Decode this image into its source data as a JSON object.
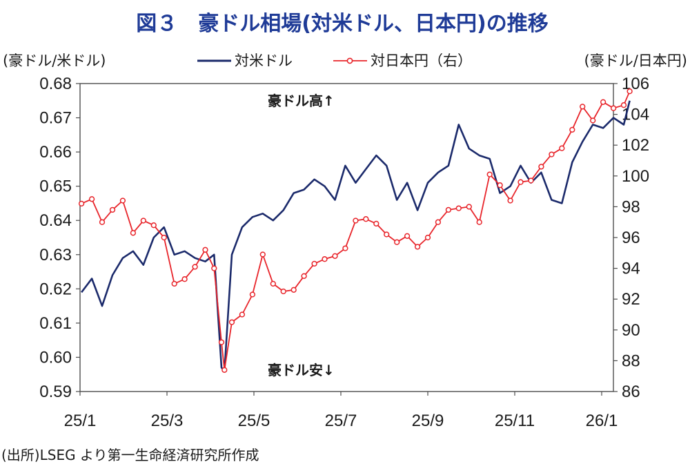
{
  "chart_data": {
    "type": "line",
    "title": "図３　豪ドル相場(対米ドル、日本円)の推移",
    "ylabel_left": "(豪ドル/米ドル)",
    "ylabel_right": "(豪ドル/日本円)",
    "ylim_left": [
      0.59,
      0.68
    ],
    "ylim_right": [
      86,
      106
    ],
    "yticks_left": [
      "0.68",
      "0.67",
      "0.66",
      "0.65",
      "0.64",
      "0.63",
      "0.62",
      "0.61",
      "0.60",
      "0.59"
    ],
    "yticks_right": [
      "106",
      "104",
      "102",
      "100",
      "98",
      "96",
      "94",
      "92",
      "90",
      "88",
      "86"
    ],
    "xticks": [
      "25/1",
      "25/3",
      "25/5",
      "25/7",
      "25/9",
      "25/11",
      "26/1"
    ],
    "grid": false,
    "legend_position": "top",
    "annotations": {
      "up": "豪ドル高↑",
      "down": "豪ドル安↓"
    },
    "source": "(出所)LSEG より第一生命経済研究所作成",
    "series": [
      {
        "name": "対米ドル",
        "axis": "left",
        "color": "#1b2a6b",
        "x": [
          "2025-01-02",
          "2025-01-09",
          "2025-01-16",
          "2025-01-23",
          "2025-01-30",
          "2025-02-06",
          "2025-02-13",
          "2025-02-20",
          "2025-02-27",
          "2025-03-06",
          "2025-03-13",
          "2025-03-20",
          "2025-03-27",
          "2025-04-02",
          "2025-04-07",
          "2025-04-09",
          "2025-04-14",
          "2025-04-21",
          "2025-04-28",
          "2025-05-05",
          "2025-05-12",
          "2025-05-19",
          "2025-05-26",
          "2025-06-02",
          "2025-06-09",
          "2025-06-16",
          "2025-06-23",
          "2025-06-30",
          "2025-07-07",
          "2025-07-14",
          "2025-07-21",
          "2025-07-28",
          "2025-08-04",
          "2025-08-11",
          "2025-08-18",
          "2025-08-25",
          "2025-09-01",
          "2025-09-08",
          "2025-09-15",
          "2025-09-22",
          "2025-09-29",
          "2025-10-06",
          "2025-10-13",
          "2025-10-20",
          "2025-10-27",
          "2025-11-03",
          "2025-11-10",
          "2025-11-17",
          "2025-11-24",
          "2025-12-01",
          "2025-12-08",
          "2025-12-15",
          "2025-12-22",
          "2025-12-29",
          "2026-01-05",
          "2026-01-09"
        ],
        "values": [
          0.619,
          0.623,
          0.615,
          0.624,
          0.629,
          0.631,
          0.627,
          0.635,
          0.638,
          0.63,
          0.631,
          0.629,
          0.628,
          0.63,
          0.597,
          0.596,
          0.63,
          0.638,
          0.641,
          0.642,
          0.64,
          0.643,
          0.648,
          0.649,
          0.652,
          0.65,
          0.646,
          0.656,
          0.651,
          0.655,
          0.659,
          0.656,
          0.646,
          0.651,
          0.643,
          0.651,
          0.654,
          0.656,
          0.668,
          0.661,
          0.659,
          0.658,
          0.648,
          0.65,
          0.656,
          0.651,
          0.654,
          0.646,
          0.645,
          0.657,
          0.663,
          0.668,
          0.667,
          0.67,
          0.668,
          0.675
        ]
      },
      {
        "name": "対日本円（右）",
        "axis": "right",
        "color": "#e8242a",
        "x": [
          "2025-01-02",
          "2025-01-09",
          "2025-01-16",
          "2025-01-23",
          "2025-01-30",
          "2025-02-06",
          "2025-02-13",
          "2025-02-20",
          "2025-02-27",
          "2025-03-06",
          "2025-03-13",
          "2025-03-20",
          "2025-03-27",
          "2025-04-02",
          "2025-04-07",
          "2025-04-09",
          "2025-04-14",
          "2025-04-21",
          "2025-04-28",
          "2025-05-05",
          "2025-05-12",
          "2025-05-19",
          "2025-05-26",
          "2025-06-02",
          "2025-06-09",
          "2025-06-16",
          "2025-06-23",
          "2025-06-30",
          "2025-07-07",
          "2025-07-14",
          "2025-07-21",
          "2025-07-28",
          "2025-08-04",
          "2025-08-11",
          "2025-08-18",
          "2025-08-25",
          "2025-09-01",
          "2025-09-08",
          "2025-09-15",
          "2025-09-22",
          "2025-09-29",
          "2025-10-06",
          "2025-10-13",
          "2025-10-20",
          "2025-10-27",
          "2025-11-03",
          "2025-11-10",
          "2025-11-17",
          "2025-11-24",
          "2025-12-01",
          "2025-12-08",
          "2025-12-15",
          "2025-12-22",
          "2025-12-29",
          "2026-01-05",
          "2026-01-09"
        ],
        "values": [
          98.2,
          98.5,
          97.0,
          97.8,
          98.4,
          96.3,
          97.1,
          96.8,
          96.0,
          93.0,
          93.3,
          94.1,
          95.2,
          94.0,
          89.2,
          87.4,
          90.5,
          91.0,
          92.3,
          94.9,
          93.0,
          92.5,
          92.6,
          93.5,
          94.3,
          94.6,
          94.8,
          95.3,
          97.1,
          97.2,
          96.9,
          96.2,
          95.7,
          96.1,
          95.4,
          96.0,
          97.0,
          97.8,
          97.9,
          98.0,
          97.0,
          100.1,
          99.4,
          98.4,
          99.6,
          99.7,
          100.6,
          101.4,
          101.8,
          103.0,
          104.5,
          103.6,
          104.8,
          104.4,
          104.6,
          105.5
        ]
      }
    ]
  }
}
